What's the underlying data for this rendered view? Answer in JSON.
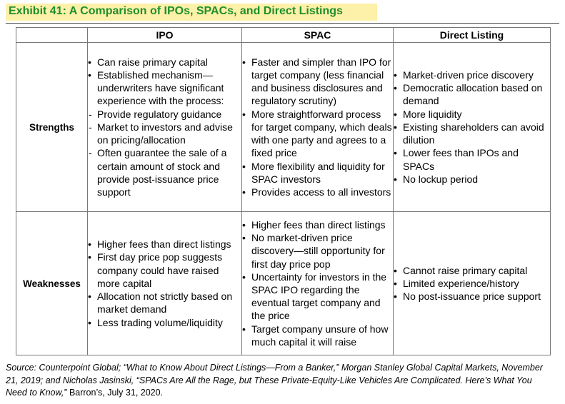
{
  "title": "Exhibit 41: A Comparison of IPOs, SPACs, and Direct Listings",
  "columns": [
    "IPO",
    "SPAC",
    "Direct Listing"
  ],
  "rows": [
    {
      "label": "Strengths",
      "cells": [
        [
          {
            "type": "bullet",
            "text": "Can raise primary capital"
          },
          {
            "type": "bullet",
            "text": "Established mechanism—underwriters have significant experience with the process:"
          },
          {
            "type": "dash",
            "text": "Provide regulatory guidance"
          },
          {
            "type": "dash",
            "text": "Market to investors and advise on pricing/allocation"
          },
          {
            "type": "dash",
            "text": "Often guarantee the sale of a certain amount of stock and provide post-issuance price support"
          }
        ],
        [
          {
            "type": "bullet",
            "text": "Faster and simpler than IPO for target company (less financial and business disclosures and regulatory scrutiny)"
          },
          {
            "type": "bullet",
            "text": "More straightforward process for target company, which deals with one party and agrees to a fixed price"
          },
          {
            "type": "bullet",
            "text": "More flexibility and liquidity for SPAC investors"
          },
          {
            "type": "bullet",
            "text": "Provides access to all investors"
          }
        ],
        [
          {
            "type": "bullet",
            "text": "Market-driven price discovery"
          },
          {
            "type": "bullet",
            "text": "Democratic allocation based on demand"
          },
          {
            "type": "bullet",
            "text": "More liquidity"
          },
          {
            "type": "bullet",
            "text": "Existing shareholders can avoid dilution"
          },
          {
            "type": "bullet",
            "text": "Lower fees than IPOs and SPACs"
          },
          {
            "type": "bullet",
            "text": "No lockup period"
          }
        ]
      ]
    },
    {
      "label": "Weaknesses",
      "cells": [
        [
          {
            "type": "bullet",
            "text": "Higher fees than direct listings"
          },
          {
            "type": "bullet",
            "text": "First day price pop suggests company could have raised more capital"
          },
          {
            "type": "bullet",
            "text": "Allocation not strictly based on market demand"
          },
          {
            "type": "bullet",
            "text": "Less trading volume/liquidity"
          }
        ],
        [
          {
            "type": "bullet",
            "text": "Higher fees than direct listings"
          },
          {
            "type": "bullet",
            "text": "No market-driven price discovery—still opportunity for first day price pop"
          },
          {
            "type": "bullet",
            "text": "Uncertainty for investors in the SPAC IPO regarding the eventual target company and the price"
          },
          {
            "type": "bullet",
            "text": "Target company unsure of how much capital it will raise"
          }
        ],
        [
          {
            "type": "bullet",
            "text": "Cannot raise primary capital"
          },
          {
            "type": "bullet",
            "text": "Limited experience/history"
          },
          {
            "type": "bullet",
            "text": "No post-issuance price support"
          }
        ]
      ]
    }
  ],
  "source": {
    "part1": "Source: Counterpoint Global; “What to Know About Direct Listings—From a Banker,” Morgan Stanley Global Capital Markets, November 21, 2019; and Nicholas Jasinski, “SPACs Are All the Rage, but These Private-Equity-Like Vehicles Are Complicated. Here’s What You Need to Know,”",
    "part2": " Barron’s, July 31, 2020."
  }
}
